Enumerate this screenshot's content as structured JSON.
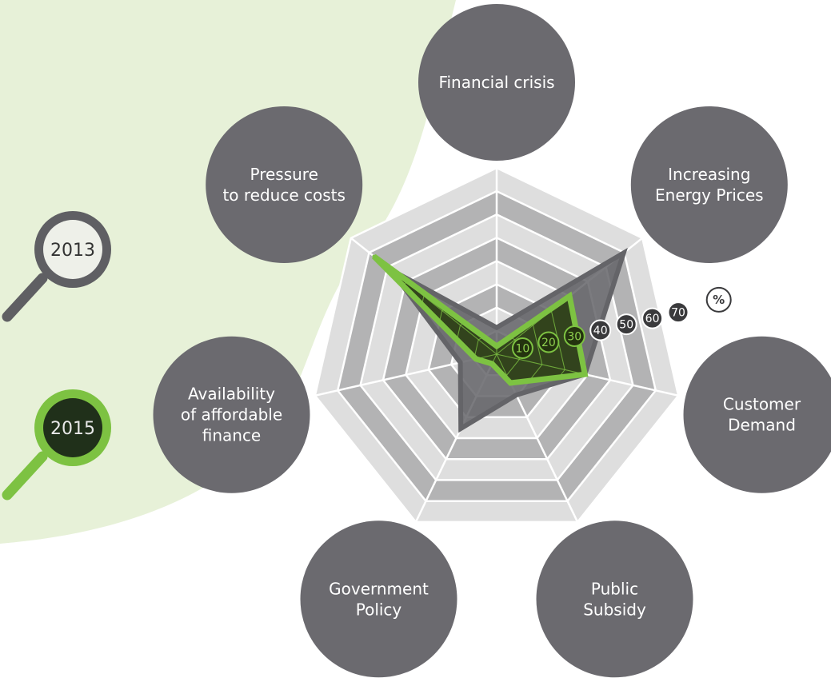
{
  "chart_data": {
    "type": "radar",
    "unit_label": "%",
    "rmax": 70,
    "ticks": [
      10,
      20,
      30,
      40,
      50,
      60,
      70
    ],
    "categories": [
      "Financial crisis",
      "Increasing Energy Prices",
      "Customer Demand",
      "Public Subsidy",
      "Government Policy",
      "Availability of affordable finance",
      "Pressure to reduce costs"
    ],
    "category_lines": [
      [
        "Financial crisis"
      ],
      [
        "Increasing",
        "Energy Prices"
      ],
      [
        "Customer",
        "Demand"
      ],
      [
        "Public",
        "Subsidy"
      ],
      [
        "Government",
        "Policy"
      ],
      [
        "Availability",
        "of affordable",
        "finance"
      ],
      [
        "Pressure",
        "to reduce costs"
      ]
    ],
    "series": [
      {
        "name": "2013",
        "values": [
          10,
          61,
          34,
          17,
          31,
          14,
          51
        ]
      },
      {
        "name": "2015",
        "values": [
          3,
          35,
          34,
          12,
          4,
          8,
          59
        ]
      }
    ]
  },
  "colors": {
    "bubble": "#6b6a6f",
    "series_2013_line": "#646468",
    "series_2015_line": "#7dc242",
    "series_2015_fill": "#2c3f15",
    "band_dark": "#b3b3b4",
    "band_light": "#dedede",
    "background_shape": "#e7f1d8"
  },
  "icons": {
    "legend_2013": "magnifier-icon",
    "legend_2015": "magnifier-icon",
    "unit": "percent-badge-icon"
  }
}
